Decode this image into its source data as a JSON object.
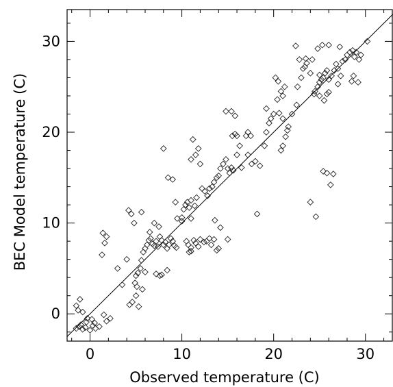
{
  "chart_data": {
    "type": "scatter",
    "title": "",
    "xlabel": "Observed temperature (C)",
    "ylabel": "BEC Model temperature (C)",
    "xlim": [
      -2.5,
      33
    ],
    "ylim": [
      -3,
      33.5
    ],
    "xticks": [
      0,
      10,
      20,
      30
    ],
    "yticks": [
      0,
      10,
      20,
      30
    ],
    "xtick_labels": [
      "0",
      "10",
      "20",
      "30"
    ],
    "ytick_labels": [
      "0",
      "10",
      "20",
      "30"
    ],
    "grid": false,
    "marker": "open-diamond",
    "reference_line": {
      "type": "one-to-one",
      "from": [
        -2.5,
        -2.5
      ],
      "to": [
        33,
        33
      ]
    },
    "series": [
      {
        "points": [
          [
            -1.5,
            -1.6
          ],
          [
            -1.2,
            -1.4
          ],
          [
            -0.8,
            -1.7
          ],
          [
            -1.0,
            -1.2
          ],
          [
            -0.5,
            -1.5
          ],
          [
            0.0,
            -1.8
          ],
          [
            0.3,
            -1.3
          ],
          [
            0.6,
            -1.6
          ],
          [
            0.2,
            -0.6
          ],
          [
            -0.3,
            -0.5
          ],
          [
            -0.8,
            0.2
          ],
          [
            -1.3,
            0.4
          ],
          [
            -1.5,
            0.9
          ],
          [
            -1.1,
            1.6
          ],
          [
            -0.4,
            -0.9
          ],
          [
            0.5,
            -1.0
          ],
          [
            1.5,
            -0.1
          ],
          [
            1.8,
            -0.8
          ],
          [
            2.2,
            -0.5
          ],
          [
            1.0,
            -1.4
          ],
          [
            1.3,
            6.5
          ],
          [
            1.6,
            7.8
          ],
          [
            1.8,
            8.5
          ],
          [
            1.4,
            8.9
          ],
          [
            3.0,
            5.0
          ],
          [
            3.5,
            3.2
          ],
          [
            4.0,
            6.0
          ],
          [
            4.2,
            11.4
          ],
          [
            4.5,
            11.0
          ],
          [
            4.8,
            10.0
          ],
          [
            4.3,
            1.0
          ],
          [
            4.6,
            1.3
          ],
          [
            5.0,
            4.2
          ],
          [
            5.2,
            4.5
          ],
          [
            5.5,
            5.0
          ],
          [
            5.0,
            2.0
          ],
          [
            5.3,
            0.8
          ],
          [
            5.7,
            2.7
          ],
          [
            5.1,
            3.0
          ],
          [
            4.9,
            3.4
          ],
          [
            5.6,
            5.9
          ],
          [
            5.8,
            6.8
          ],
          [
            6.0,
            7.2
          ],
          [
            6.2,
            7.6
          ],
          [
            6.4,
            8.1
          ],
          [
            6.6,
            8.3
          ],
          [
            6.8,
            7.7
          ],
          [
            7.0,
            7.5
          ],
          [
            7.2,
            8.0
          ],
          [
            7.4,
            7.4
          ],
          [
            7.6,
            8.5
          ],
          [
            7.8,
            8.1
          ],
          [
            8.0,
            7.6
          ],
          [
            8.2,
            7.9
          ],
          [
            8.4,
            7.2
          ],
          [
            8.6,
            7.6
          ],
          [
            8.8,
            8.3
          ],
          [
            9.0,
            8.0
          ],
          [
            9.2,
            7.5
          ],
          [
            9.4,
            7.3
          ],
          [
            5.6,
            11.2
          ],
          [
            6.5,
            9.0
          ],
          [
            7.0,
            10.0
          ],
          [
            7.5,
            9.6
          ],
          [
            6.0,
            4.6
          ],
          [
            7.2,
            4.4
          ],
          [
            7.6,
            4.2
          ],
          [
            7.8,
            4.3
          ],
          [
            8.4,
            4.8
          ],
          [
            8.0,
            18.2
          ],
          [
            8.5,
            15.0
          ],
          [
            9.0,
            14.8
          ],
          [
            9.3,
            12.3
          ],
          [
            9.5,
            10.5
          ],
          [
            10.0,
            10.2
          ],
          [
            10.0,
            10.6
          ],
          [
            10.2,
            11.5
          ],
          [
            10.4,
            12.0
          ],
          [
            10.6,
            12.3
          ],
          [
            10.8,
            11.7
          ],
          [
            11.0,
            17.0
          ],
          [
            11.2,
            19.2
          ],
          [
            11.5,
            17.5
          ],
          [
            11.8,
            18.2
          ],
          [
            12.0,
            16.5
          ],
          [
            11.0,
            12.5
          ],
          [
            11.4,
            11.9
          ],
          [
            11.6,
            12.8
          ],
          [
            11.0,
            10.5
          ],
          [
            10.5,
            8.0
          ],
          [
            10.7,
            7.6
          ],
          [
            11.0,
            7.3
          ],
          [
            11.3,
            8.1
          ],
          [
            11.5,
            7.8
          ],
          [
            11.8,
            7.4
          ],
          [
            12.0,
            8.2
          ],
          [
            12.4,
            7.9
          ],
          [
            12.7,
            8.0
          ],
          [
            13.0,
            8.3
          ],
          [
            13.2,
            7.6
          ],
          [
            13.5,
            8.2
          ],
          [
            13.8,
            7.0
          ],
          [
            14.0,
            7.2
          ],
          [
            10.8,
            6.8
          ],
          [
            11.0,
            6.9
          ],
          [
            12.2,
            13.8
          ],
          [
            12.5,
            13.5
          ],
          [
            12.8,
            13.0
          ],
          [
            13.0,
            13.8
          ],
          [
            13.3,
            14.0
          ],
          [
            13.5,
            14.5
          ],
          [
            13.8,
            15.0
          ],
          [
            14.0,
            15.2
          ],
          [
            14.2,
            16.0
          ],
          [
            14.5,
            16.5
          ],
          [
            14.8,
            17.0
          ],
          [
            15.0,
            16.0
          ],
          [
            15.2,
            15.5
          ],
          [
            15.4,
            16.1
          ],
          [
            15.6,
            15.8
          ],
          [
            14.8,
            22.3
          ],
          [
            15.4,
            22.3
          ],
          [
            15.8,
            21.8
          ],
          [
            15.5,
            19.6
          ],
          [
            15.8,
            19.8
          ],
          [
            16.0,
            19.6
          ],
          [
            16.3,
            18.5
          ],
          [
            16.0,
            17.5
          ],
          [
            16.5,
            16.1
          ],
          [
            17.0,
            19.6
          ],
          [
            17.2,
            20.0
          ],
          [
            17.5,
            19.6
          ],
          [
            17.2,
            17.5
          ],
          [
            17.6,
            16.5
          ],
          [
            18.0,
            16.8
          ],
          [
            18.5,
            16.3
          ],
          [
            18.2,
            11.0
          ],
          [
            15.0,
            8.2
          ],
          [
            13.6,
            10.3
          ],
          [
            14.2,
            9.5
          ],
          [
            19.0,
            18.5
          ],
          [
            19.2,
            20.0
          ],
          [
            19.5,
            21.0
          ],
          [
            19.7,
            21.5
          ],
          [
            19.2,
            22.6
          ],
          [
            20.0,
            22.0
          ],
          [
            20.2,
            26.0
          ],
          [
            20.5,
            25.6
          ],
          [
            20.8,
            24.5
          ],
          [
            21.0,
            24.0
          ],
          [
            21.2,
            25.0
          ],
          [
            20.4,
            23.6
          ],
          [
            20.6,
            22.1
          ],
          [
            21.0,
            21.5
          ],
          [
            21.3,
            19.5
          ],
          [
            21.5,
            20.2
          ],
          [
            21.6,
            20.6
          ],
          [
            21.0,
            18.5
          ],
          [
            20.8,
            18.0
          ],
          [
            22.0,
            22.0
          ],
          [
            22.5,
            23.0
          ],
          [
            22.6,
            25.0
          ],
          [
            23.0,
            26.0
          ],
          [
            23.2,
            27.0
          ],
          [
            22.4,
            29.5
          ],
          [
            22.8,
            28.0
          ],
          [
            23.4,
            27.2
          ],
          [
            23.6,
            27.6
          ],
          [
            24.0,
            26.5
          ],
          [
            24.2,
            28.0
          ],
          [
            24.5,
            24.5
          ],
          [
            24.4,
            24.2
          ],
          [
            24.8,
            25.0
          ],
          [
            25.0,
            25.5
          ],
          [
            25.0,
            26.3
          ],
          [
            25.2,
            25.8
          ],
          [
            25.4,
            26.0
          ],
          [
            25.6,
            26.5
          ],
          [
            25.8,
            26.8
          ],
          [
            26.0,
            25.8
          ],
          [
            25.0,
            24.0
          ],
          [
            25.5,
            23.5
          ],
          [
            25.8,
            24.2
          ],
          [
            26.0,
            24.4
          ],
          [
            26.3,
            26.2
          ],
          [
            26.6,
            26.8
          ],
          [
            26.8,
            27.5
          ],
          [
            27.0,
            27.0
          ],
          [
            27.3,
            26.2
          ],
          [
            27.5,
            27.8
          ],
          [
            27.8,
            28.0
          ],
          [
            28.0,
            28.5
          ],
          [
            28.3,
            28.8
          ],
          [
            28.6,
            29.0
          ],
          [
            28.8,
            28.3
          ],
          [
            29.0,
            28.8
          ],
          [
            29.3,
            28.0
          ],
          [
            28.5,
            25.6
          ],
          [
            28.7,
            26.2
          ],
          [
            29.2,
            25.5
          ],
          [
            24.0,
            12.3
          ],
          [
            24.6,
            10.7
          ],
          [
            25.4,
            15.7
          ],
          [
            25.8,
            15.5
          ],
          [
            26.2,
            14.2
          ],
          [
            26.5,
            15.4
          ],
          [
            30.2,
            30.0
          ],
          [
            29.5,
            28.5
          ],
          [
            27.2,
            29.4
          ],
          [
            27.0,
            25.3
          ],
          [
            25.3,
            29.6
          ],
          [
            26.0,
            29.6
          ],
          [
            23.5,
            28.1
          ],
          [
            24.8,
            29.2
          ]
        ]
      }
    ]
  }
}
